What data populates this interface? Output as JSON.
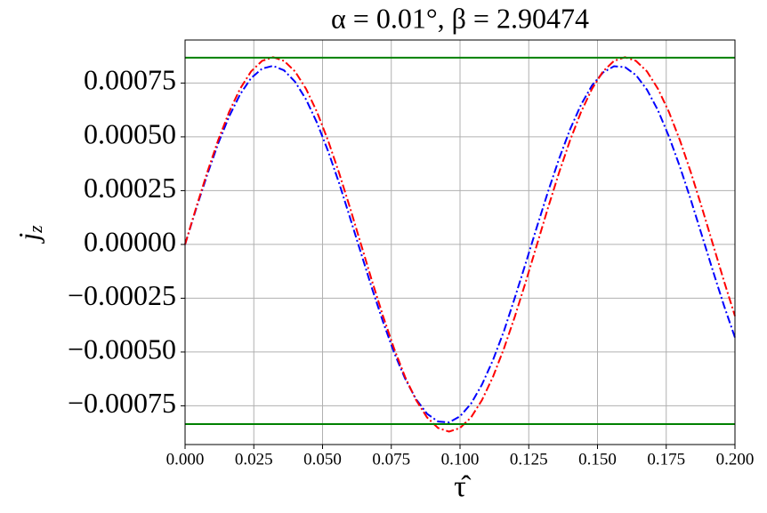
{
  "chart_data": {
    "type": "line",
    "title": "α = 0.01°,  β = 2.90474",
    "xlabel": "τ̂",
    "ylabel": "j",
    "ylabel_sub": "z",
    "x": [
      0,
      0.004,
      0.008,
      0.012,
      0.016,
      0.02,
      0.024,
      0.028,
      0.032,
      0.036,
      0.04,
      0.044,
      0.048,
      0.052,
      0.056,
      0.06,
      0.064,
      0.068,
      0.072,
      0.076,
      0.08,
      0.084,
      0.088,
      0.092,
      0.096,
      0.1,
      0.104,
      0.108,
      0.112,
      0.116,
      0.12,
      0.124,
      0.128,
      0.132,
      0.136,
      0.14,
      0.144,
      0.148,
      0.152,
      0.156,
      0.16,
      0.164,
      0.168,
      0.172,
      0.176,
      0.18,
      0.184,
      0.188,
      0.192,
      0.196,
      0.2
    ],
    "series": [
      {
        "color": "#0000ff",
        "dash": "9 3 2 3",
        "values": [
          0,
          0.000165,
          0.000322,
          0.000468,
          0.000594,
          0.000697,
          0.000773,
          0.000817,
          0.00083,
          0.000809,
          0.000756,
          0.000674,
          0.000565,
          0.000434,
          0.000286,
          0.000124,
          -4.1e-05,
          -0.000205,
          -0.00036,
          -0.000502,
          -0.000623,
          -0.000719,
          -0.000787,
          -0.000823,
          -0.000827,
          -0.000799,
          -0.00074,
          -0.000651,
          -0.000537,
          -0.000402,
          -0.000245,
          -8.3e-05,
          8.3e-05,
          0.000245,
          0.000397,
          0.000534,
          0.000649,
          0.000739,
          0.000799,
          0.000828,
          0.000824,
          0.000787,
          0.000719,
          0.000623,
          0.000501,
          0.00036,
          0.000205,
          4.1e-05,
          -0.000124,
          -0.000284,
          -0.000433
        ]
      },
      {
        "color": "#ff0000",
        "dash": "9 3 2 3",
        "values": [
          0,
          0.00017,
          0.000333,
          0.000483,
          0.000615,
          0.000723,
          0.000804,
          0.000853,
          0.00087,
          0.000853,
          0.000804,
          0.000723,
          0.000615,
          0.000483,
          0.000333,
          0.00017,
          0,
          -0.00017,
          -0.000333,
          -0.000483,
          -0.000615,
          -0.000723,
          -0.000804,
          -0.000853,
          -0.00087,
          -0.000853,
          -0.000804,
          -0.000723,
          -0.000615,
          -0.000483,
          -0.000333,
          -0.00017,
          0,
          0.00017,
          0.000333,
          0.000483,
          0.000615,
          0.000723,
          0.000804,
          0.000853,
          0.00087,
          0.000853,
          0.000804,
          0.000723,
          0.000615,
          0.000483,
          0.000333,
          0.00017,
          0,
          -0.00017,
          -0.000333
        ]
      }
    ],
    "hlines": [
      {
        "value": 0.000868,
        "color": "#008000"
      },
      {
        "value": -0.000835,
        "color": "#008000"
      }
    ],
    "xlim": [
      0,
      0.2
    ],
    "ylim": [
      -0.00093,
      0.00095
    ],
    "xticks": [
      {
        "value": 0,
        "label": "0.000"
      },
      {
        "value": 0.025,
        "label": "0.025"
      },
      {
        "value": 0.05,
        "label": "0.050"
      },
      {
        "value": 0.075,
        "label": "0.075"
      },
      {
        "value": 0.1,
        "label": "0.100"
      },
      {
        "value": 0.125,
        "label": "0.125"
      },
      {
        "value": 0.15,
        "label": "0.150"
      },
      {
        "value": 0.175,
        "label": "0.175"
      },
      {
        "value": 0.2,
        "label": "0.200"
      }
    ],
    "yticks": [
      {
        "value": -0.00075,
        "label": "−0.00075"
      },
      {
        "value": -0.0005,
        "label": "−0.00050"
      },
      {
        "value": -0.00025,
        "label": "−0.00025"
      },
      {
        "value": 0,
        "label": "0.00000"
      },
      {
        "value": 0.00025,
        "label": "0.00025"
      },
      {
        "value": 0.0005,
        "label": "0.00050"
      },
      {
        "value": 0.00075,
        "label": "0.00075"
      }
    ],
    "grid": true
  }
}
